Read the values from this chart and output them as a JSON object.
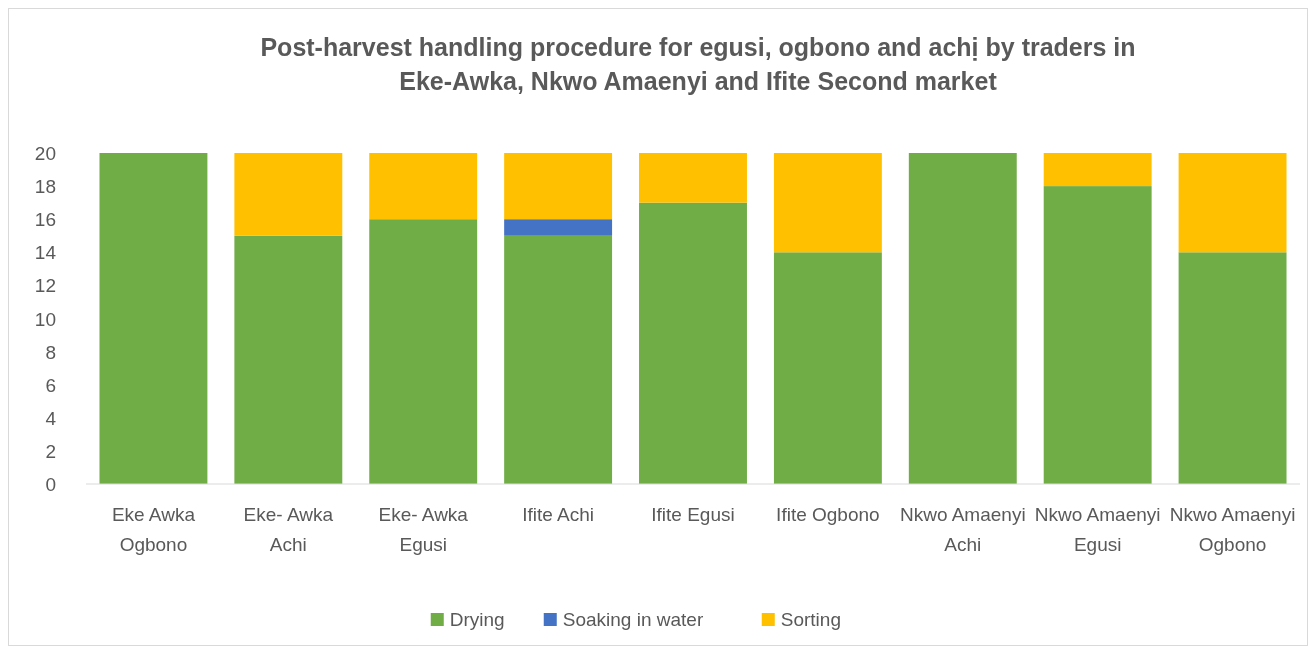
{
  "chart_data": {
    "type": "bar",
    "stacked": true,
    "title": "Post-harvest handling procedure for egusi, ogbono and achị by traders in Eke-Awka, Nkwo Amaenyi and Ifite Second market",
    "categories": [
      "Eke Awka Ogbono",
      "Eke- Awka Achi",
      "Eke- Awka Egusi",
      "Ifite Achi",
      "Ifite Egusi",
      "Ifite Ogbono",
      "Nkwo Amaenyi Achi",
      "Nkwo Amaenyi Egusi",
      "Nkwo Amaenyi Ogbono"
    ],
    "series": [
      {
        "name": "Drying",
        "color": "#70ad47",
        "values": [
          20,
          15,
          16,
          15,
          17,
          14,
          20,
          18,
          14
        ]
      },
      {
        "name": "Soaking in water",
        "color": "#4472c4",
        "values": [
          0,
          0,
          0,
          1,
          0,
          0,
          0,
          0,
          0
        ]
      },
      {
        "name": "Sorting",
        "color": "#ffc000",
        "values": [
          0,
          5,
          4,
          4,
          3,
          6,
          0,
          2,
          6
        ]
      }
    ],
    "ylim": [
      0,
      20
    ],
    "yticks": [
      0,
      2,
      4,
      6,
      8,
      10,
      12,
      14,
      16,
      18,
      20
    ],
    "grid": false,
    "legend": "bottom"
  }
}
